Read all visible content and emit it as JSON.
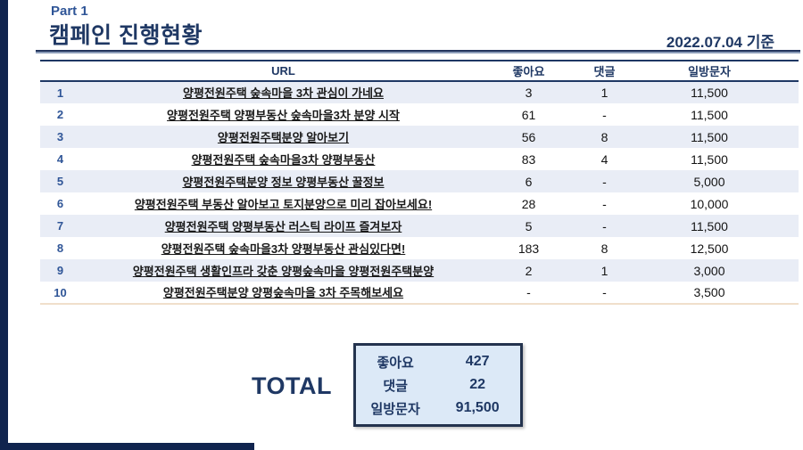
{
  "page": {
    "part_label": "Part 1",
    "title": "캠페인 진행현황",
    "date_label": "2022.07.04 기준"
  },
  "colors": {
    "navy_bar": "#10244E",
    "title_navy": "#1F3864",
    "accent_blue": "#2F5597",
    "row_alt_bg": "#E9EDF6",
    "total_box_bg": "#DCE9F7",
    "table_bottom_rule": "#F0DFCB"
  },
  "table": {
    "headers": {
      "url": "URL",
      "likes": "좋아요",
      "comments": "댓글",
      "visitors": "일방문자"
    },
    "rows": [
      {
        "no": "1",
        "url": "양평전원주택 숲속마을 3차 관심이 가네요",
        "likes": "3",
        "comments": "1",
        "visitors": "11,500"
      },
      {
        "no": "2",
        "url": "양평전원주택 양평부동산 숲속마을3차 분양 시작",
        "likes": "61",
        "comments": "-",
        "visitors": "11,500"
      },
      {
        "no": "3",
        "url": "양평전원주택분양 알아보기",
        "likes": "56",
        "comments": "8",
        "visitors": "11,500"
      },
      {
        "no": "4",
        "url": "양평전원주택 숲속마을3차 양평부동산",
        "likes": "83",
        "comments": "4",
        "visitors": "11,500"
      },
      {
        "no": "5",
        "url": "양평전원주택분양 정보 양평부동산 꿀정보",
        "likes": "6",
        "comments": "-",
        "visitors": "5,000"
      },
      {
        "no": "6",
        "url": "양평전원주택 부동산 알아보고 토지분양으로 미리 잡아보세요!",
        "likes": "28",
        "comments": "-",
        "visitors": "10,000"
      },
      {
        "no": "7",
        "url": "양평전원주택 양평부동산 러스틱 라이프 즐겨보자",
        "likes": "5",
        "comments": "-",
        "visitors": "11,500"
      },
      {
        "no": "8",
        "url": "양평전원주택 숲속마을3차 양평부동산 관심있다면!",
        "likes": "183",
        "comments": "8",
        "visitors": "12,500"
      },
      {
        "no": "9",
        "url": "양평전원주택 생활인프라 갖춘 양평숲속마을 양평전원주택분양",
        "likes": "2",
        "comments": "1",
        "visitors": "3,000"
      },
      {
        "no": "10",
        "url": "양평전원주택분양 양평숲속마을 3차 주목해보세요",
        "likes": "-",
        "comments": "-",
        "visitors": "3,500"
      }
    ]
  },
  "total": {
    "label": "TOTAL",
    "rows": [
      {
        "label": "좋아요",
        "value": "427"
      },
      {
        "label": "댓글",
        "value": "22"
      },
      {
        "label": "일방문자",
        "value": "91,500"
      }
    ]
  }
}
